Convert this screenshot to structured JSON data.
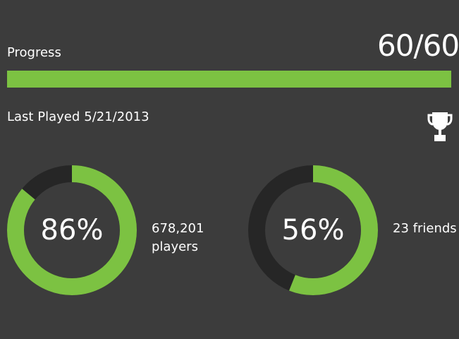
{
  "progress": {
    "label": "Progress",
    "value_text": "60/60",
    "fraction": 1.0
  },
  "last_played": {
    "label": "Last Played",
    "date": "5/21/2013"
  },
  "icons": {
    "trophy": "trophy-icon"
  },
  "stats": {
    "players": {
      "percent_text": "86%",
      "percent": 86,
      "count": "678,201",
      "noun": "players"
    },
    "friends": {
      "percent_text": "56%",
      "percent": 56,
      "count_text": "23 friends"
    }
  },
  "colors": {
    "background": "#3c3c3c",
    "accent": "#7cc242",
    "track": "#262626",
    "text": "#ffffff"
  }
}
